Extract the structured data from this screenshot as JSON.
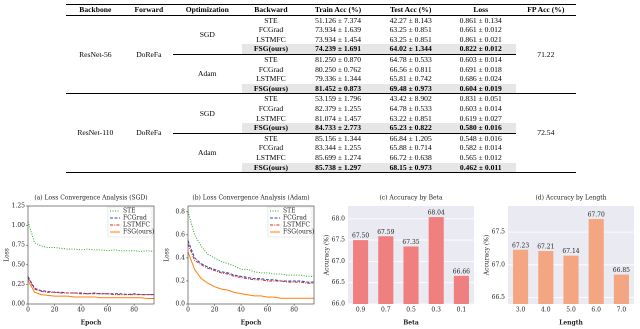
{
  "table": {
    "columns": [
      "Backbone",
      "Forward",
      "Optimization",
      "Backward",
      "Train Acc (%)",
      "Test Acc (%)",
      "Loss",
      "FP Acc (%)"
    ],
    "groups": [
      {
        "backbone": "ResNet-56",
        "forward": "DoReFa",
        "fp_acc": 71.22,
        "optimizers": [
          {
            "name": "SGD",
            "rows": [
              [
                "STE",
                "51.126 ± 7.374",
                "42.27 ± 8.143",
                "0.861 ± 0.134"
              ],
              [
                "FCGrad",
                "73.934 ± 1.639",
                "63.25 ± 0.851",
                "0.661 ± 0.012"
              ],
              [
                "LSTMFC",
                "73.934 ± 1.454",
                "63.25 ± 0.851",
                "0.861 ± 0.021"
              ],
              [
                "FSG(ours)",
                "74.239 ± 1.691",
                "64.02 ± 1.344",
                "0.822 ± 0.012"
              ]
            ]
          },
          {
            "name": "Adam",
            "rows": [
              [
                "STE",
                "81.250 ± 0.870",
                "64.78 ± 0.533",
                "0.603 ± 0.014"
              ],
              [
                "FCGrad",
                "80.250 ± 0.762",
                "66.56 ± 0.811",
                "0.691 ± 0.018"
              ],
              [
                "LSTMFC",
                "79.336 ± 1.344",
                "65.81 ± 0.742",
                "0.686 ± 0.024"
              ],
              [
                "FSG(ours)",
                "81.452 ± 0.873",
                "69.48 ± 0.973",
                "0.604 ± 0.019"
              ]
            ]
          }
        ]
      },
      {
        "backbone": "ResNet-110",
        "forward": "DoReFa",
        "fp_acc": 72.54,
        "optimizers": [
          {
            "name": "SGD",
            "rows": [
              [
                "STE",
                "53.159 ± 1.796",
                "43.42 ± 8.902",
                "0.831 ± 0.051"
              ],
              [
                "FCGrad",
                "82.379 ± 1.255",
                "64.78 ± 0.533",
                "0.603 ± 0.014"
              ],
              [
                "LSTMFC",
                "81.074 ± 1.457",
                "63.22 ± 0.851",
                "0.619 ± 0.027"
              ],
              [
                "FSG(ours)",
                "84.733 ± 2.773",
                "65.23 ± 0.822",
                "0.580 ± 0.016"
              ]
            ]
          },
          {
            "name": "Adam",
            "rows": [
              [
                "STE",
                "85.156 ± 1.344",
                "66.84 ± 1.205",
                "0.548 ± 0.016"
              ],
              [
                "FCGrad",
                "83.344 ± 1.255",
                "65.88 ± 0.714",
                "0.582 ± 0.014"
              ],
              [
                "LSTMFC",
                "85.699 ± 1.274",
                "66.72 ± 0.638",
                "0.565 ± 0.012"
              ],
              [
                "FSG(ours)",
                "85.738 ± 1.297",
                "68.15 ± 0.973",
                "0.462 ± 0.011"
              ]
            ]
          }
        ]
      }
    ]
  },
  "chart_data": [
    {
      "type": "line",
      "title": "(a) Loss Convergence Analysis (SGD)",
      "x_label": "Epoch",
      "y_label": "Loss",
      "x": [
        0,
        5,
        10,
        15,
        20,
        25,
        30,
        35,
        40,
        45,
        50,
        55,
        60,
        65,
        70,
        75,
        80,
        85,
        90,
        95
      ],
      "xlim": [
        0,
        95
      ],
      "xticks": [
        0,
        20,
        40,
        60,
        80
      ],
      "ylim": [
        0,
        1.25
      ],
      "yticks": [
        {
          "value": 0,
          "label": "0.00"
        },
        {
          "value": 0.25,
          "label": "0.25"
        },
        {
          "value": 0.5,
          "label": "0.50"
        },
        {
          "value": 0.75,
          "label": "0.75"
        },
        {
          "value": 1,
          "label": "1.00"
        },
        {
          "value": 1.25,
          "label": "1.25"
        }
      ],
      "legend": "upper right",
      "series": [
        {
          "name": "STE",
          "color": "#2ca02c",
          "style": "dotted",
          "values": [
            1.05,
            0.78,
            0.74,
            0.72,
            0.72,
            0.71,
            0.7,
            0.7,
            0.69,
            0.7,
            0.69,
            0.69,
            0.68,
            0.69,
            0.68,
            0.68,
            0.68,
            0.67,
            0.68,
            0.67
          ]
        },
        {
          "name": "FCGrad",
          "color": "#1f4fb4",
          "style": "dashed",
          "values": [
            0.35,
            0.2,
            0.17,
            0.16,
            0.15,
            0.15,
            0.14,
            0.14,
            0.14,
            0.13,
            0.14,
            0.13,
            0.13,
            0.13,
            0.13,
            0.12,
            0.13,
            0.12,
            0.12,
            0.12
          ]
        },
        {
          "name": "LSTMFC",
          "color": "#d62728",
          "style": "dashdot",
          "values": [
            0.33,
            0.19,
            0.16,
            0.15,
            0.15,
            0.14,
            0.14,
            0.14,
            0.13,
            0.13,
            0.13,
            0.13,
            0.13,
            0.12,
            0.12,
            0.12,
            0.12,
            0.12,
            0.12,
            0.12
          ]
        },
        {
          "name": "FSG(ours)",
          "color": "#ff7f0e",
          "style": "solid",
          "values": [
            0.3,
            0.15,
            0.12,
            0.11,
            0.1,
            0.1,
            0.1,
            0.09,
            0.09,
            0.09,
            0.09,
            0.08,
            0.08,
            0.08,
            0.08,
            0.08,
            0.08,
            0.08,
            0.07,
            0.07
          ]
        }
      ]
    },
    {
      "type": "line",
      "title": "(b) Loss Convergence Analysis (Adam)",
      "x_label": "Epoch",
      "y_label": "Loss",
      "x": [
        0,
        5,
        10,
        15,
        20,
        25,
        30,
        35,
        40,
        45,
        50,
        55,
        60,
        65,
        70,
        75,
        80,
        85,
        90,
        95
      ],
      "xlim": [
        0,
        95
      ],
      "xticks": [
        0,
        20,
        40,
        60,
        80
      ],
      "ylim": [
        0,
        0.85
      ],
      "yticks": [
        {
          "value": 0,
          "label": "0.0"
        },
        0.2,
        0.4,
        0.6,
        0.8
      ],
      "legend": "upper right",
      "series": [
        {
          "name": "STE",
          "color": "#2ca02c",
          "style": "dotted",
          "values": [
            0.8,
            0.6,
            0.5,
            0.43,
            0.4,
            0.37,
            0.35,
            0.33,
            0.3,
            0.3,
            0.28,
            0.27,
            0.27,
            0.26,
            0.26,
            0.25,
            0.25,
            0.25,
            0.24,
            0.24
          ]
        },
        {
          "name": "FCGrad",
          "color": "#1f4fb4",
          "style": "dashed",
          "values": [
            0.55,
            0.4,
            0.35,
            0.32,
            0.3,
            0.28,
            0.27,
            0.25,
            0.24,
            0.23,
            0.22,
            0.22,
            0.21,
            0.21,
            0.2,
            0.2,
            0.2,
            0.2,
            0.19,
            0.19
          ]
        },
        {
          "name": "LSTMFC",
          "color": "#d62728",
          "style": "dashdot",
          "values": [
            0.52,
            0.38,
            0.34,
            0.31,
            0.29,
            0.27,
            0.26,
            0.24,
            0.23,
            0.22,
            0.21,
            0.21,
            0.2,
            0.2,
            0.2,
            0.19,
            0.19,
            0.19,
            0.18,
            0.18
          ]
        },
        {
          "name": "FSG(ours)",
          "color": "#ff7f0e",
          "style": "solid",
          "values": [
            0.45,
            0.3,
            0.22,
            0.18,
            0.15,
            0.13,
            0.12,
            0.1,
            0.09,
            0.08,
            0.07,
            0.07,
            0.06,
            0.06,
            0.05,
            0.05,
            0.05,
            0.05,
            0.05,
            0.05
          ]
        }
      ]
    },
    {
      "type": "bar",
      "title": "(c) Accuracy by Beta",
      "x_label": "Beta",
      "y_label": "Accuracy (%)",
      "categories": [
        "0.9",
        "0.7",
        "0.5",
        "0.3",
        "0.1"
      ],
      "values": [
        67.5,
        67.59,
        67.35,
        68.04,
        66.66
      ],
      "value_labels": [
        "67.50",
        "67.59",
        "67.35",
        "68.04",
        "66.66"
      ],
      "color": "#f08080",
      "grid": true,
      "ylim": [
        66,
        68.3
      ],
      "yticks": [
        {
          "value": 66,
          "label": "66.0"
        },
        66.5,
        {
          "value": 67,
          "label": "67.0"
        },
        67.5,
        {
          "value": 68,
          "label": "68.0"
        }
      ]
    },
    {
      "type": "bar",
      "title": "(d) Accuracy by Length",
      "x_label": "Length",
      "y_label": "Accuracy (%)",
      "categories": [
        "3.0",
        "4.0",
        "5.0",
        "6.0",
        "7.0"
      ],
      "values": [
        67.23,
        67.21,
        67.14,
        67.7,
        66.85
      ],
      "value_labels": [
        "67.23",
        "67.21",
        "67.14",
        "67.70",
        "66.85"
      ],
      "color": "#f4a582",
      "grid": true,
      "ylim": [
        66.4,
        67.9
      ],
      "yticks": [
        66.5,
        {
          "value": 67,
          "label": "67.0"
        },
        67.5
      ]
    }
  ]
}
